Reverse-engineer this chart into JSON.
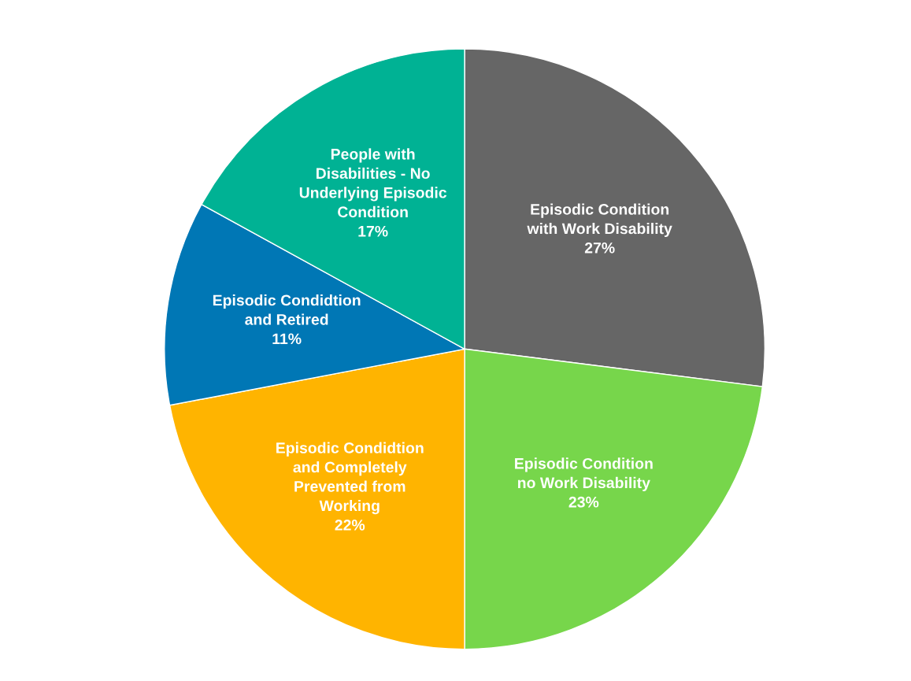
{
  "chart_data": {
    "type": "pie",
    "categories": [
      "Episodic Condition\nwith Work Disability",
      "Episodic Condition\nno Work Disability",
      "Episodic Condidtion\nand Completely\nPrevented from\nWorking",
      "Episodic Condidtion\nand Retired",
      "People with\nDisabilities - No\nUnderlying Episodic\nCondition"
    ],
    "values": [
      27,
      23,
      22,
      11,
      17
    ],
    "value_labels": [
      "27%",
      "23%",
      "22%",
      "11%",
      "17%"
    ],
    "colors": [
      "#666666",
      "#77d64b",
      "#ffb400",
      "#0077b5",
      "#00b294"
    ],
    "legend": false
  }
}
